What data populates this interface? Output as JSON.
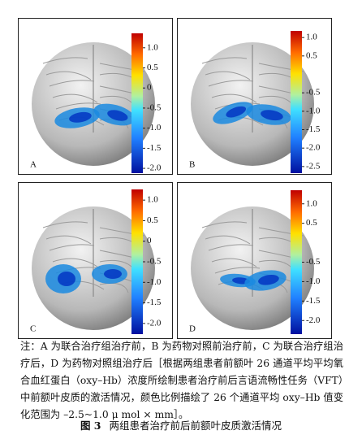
{
  "panels": [
    {
      "label": "A",
      "colorbar": {
        "lim": [
          -2.12,
          1.36
        ],
        "ticks": [
          {
            "value": 1,
            "label": "1.0"
          },
          0.5,
          0,
          -0.5,
          {
            "value": -1,
            "label": "-1.0"
          },
          -1.5,
          {
            "value": -2,
            "label": "-2.0"
          }
        ]
      }
    },
    {
      "label": "B",
      "colorbar": {
        "lim": [
          -2.68,
          1.18
        ],
        "ticks": [
          {
            "value": 1,
            "label": "1.0"
          },
          0.5,
          -0.5,
          {
            "value": -1,
            "label": "-1.0"
          },
          -1.5,
          {
            "value": -2,
            "label": "-2.0"
          },
          -2.5
        ]
      }
    },
    {
      "label": "C",
      "colorbar": {
        "lim": [
          -2.26,
          1.26
        ],
        "ticks": [
          {
            "value": 1,
            "label": "1.0"
          },
          0.5,
          0,
          -0.5,
          {
            "value": -1,
            "label": "-1.0"
          },
          -1.5,
          {
            "value": -2,
            "label": "-2.0"
          }
        ]
      }
    },
    {
      "label": "D",
      "colorbar": {
        "lim": [
          -2.35,
          1.35
        ],
        "ticks": [
          {
            "value": 1,
            "label": "1.0"
          },
          0.5,
          -0.5,
          {
            "value": -1,
            "label": "-1.0"
          },
          -1.5,
          {
            "value": -2,
            "label": "-2.0"
          }
        ]
      }
    }
  ],
  "caption": "注：A 为联合治疗组治疗前，B 为药物对照前治疗前，C 为联合治疗组治疗后，D 为药物对照组治疗后［根据两组患者前额叶 26 通道平均平均氧合血红蛋白（oxy–Hb）浓度所绘制患者治疗前后言语流畅性任务（VFT）中前额叶皮质的激活情况，颜色比例描绘了 26 个通道平均 oxy–Hb 值变化范围为 –2.5~1.0 μ mol × mm］。",
  "figure": {
    "number": "图 3",
    "title": "两组患者治疗前后前额叶皮质激活情况"
  }
}
